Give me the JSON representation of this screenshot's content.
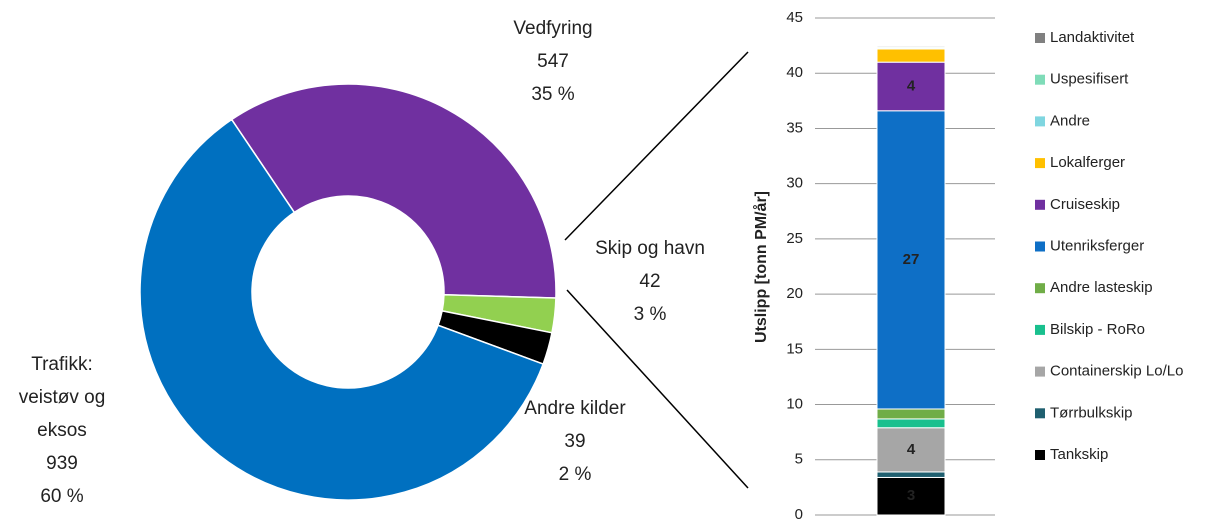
{
  "chart_data": [
    {
      "type": "donut",
      "categories": [
        "Vedfyring",
        "Skip og havn",
        "Andre kilder",
        "Trafikk:\nveistøv og\neksos"
      ],
      "values": [
        547,
        42,
        39,
        939
      ],
      "percent_labels": [
        "35 %",
        "3 %",
        "2 %",
        "60 %"
      ],
      "colors": [
        "#7030a0",
        "#92d050",
        "#000000",
        "#0070c0"
      ]
    },
    {
      "type": "stacked_bar",
      "ylabel": "Utslipp [tonn PM/år]",
      "categories": [
        null
      ],
      "ylim": [
        0,
        45
      ],
      "yticks": [
        0,
        5,
        10,
        15,
        20,
        25,
        30,
        35,
        40,
        45
      ],
      "grid": true,
      "series": [
        {
          "name": "Tankskip",
          "color": "#000000",
          "values": [
            3.4
          ],
          "value_labels": [
            "3"
          ]
        },
        {
          "name": "Tørrbulkskip",
          "color": "#1f5f6f",
          "values": [
            0.5
          ]
        },
        {
          "name": "Containerskip Lo/Lo",
          "color": "#a6a6a6",
          "values": [
            4.0
          ],
          "value_labels": [
            "4"
          ]
        },
        {
          "name": "Bilskip - RoRo",
          "color": "#19c08e",
          "values": [
            0.8
          ]
        },
        {
          "name": "Andre lasteskip",
          "color": "#70ad47",
          "values": [
            0.9
          ]
        },
        {
          "name": "Utenriksferger",
          "color": "#0e6fc6",
          "values": [
            27.0
          ],
          "value_labels": [
            "27"
          ]
        },
        {
          "name": "Cruiseskip",
          "color": "#7030a0",
          "values": [
            4.4
          ],
          "value_labels": [
            "4"
          ]
        },
        {
          "name": "Lokalferger",
          "color": "#ffc000",
          "values": [
            1.2
          ]
        },
        {
          "name": "Andre",
          "color": "#7fd6e0",
          "values": [
            0.1
          ]
        },
        {
          "name": "Uspesifisert",
          "color": "#7fdcb8",
          "values": [
            0.1
          ]
        },
        {
          "name": "Landaktivitet",
          "color": "#808080",
          "values": [
            0.1
          ]
        }
      ]
    }
  ]
}
